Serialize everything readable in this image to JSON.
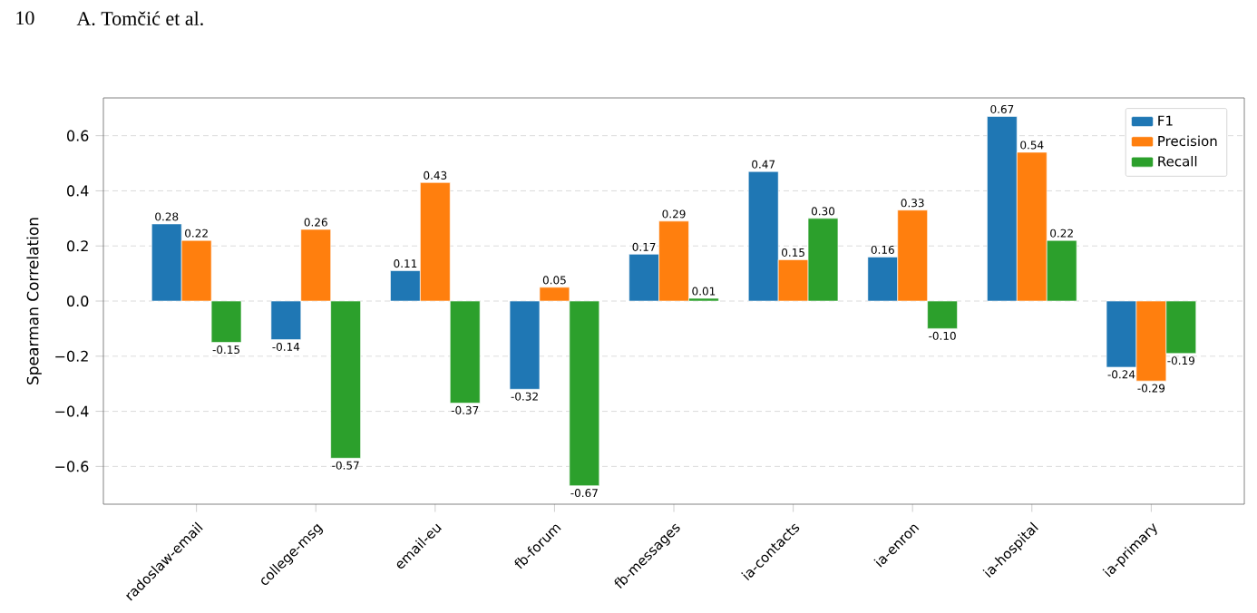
{
  "chart_data": {
    "type": "bar",
    "annotations": [
      "10",
      "A. Tomčić et al."
    ],
    "ylabel": "Spearman Correlation",
    "categories": [
      "radoslaw-email",
      "college-msg",
      "email-eu",
      "fb-forum",
      "fb-messages",
      "ia-contacts",
      "ia-enron",
      "ia-hospital",
      "ia-primary"
    ],
    "series": [
      {
        "name": "F1",
        "color": "#1f77b4",
        "values": [
          0.28,
          -0.14,
          0.11,
          -0.32,
          0.17,
          0.47,
          0.16,
          0.67,
          -0.24
        ],
        "value_labels": [
          "0.28",
          "-0.14",
          "0.11",
          "-0.32",
          "0.17",
          "0.47",
          "0.16",
          "0.67",
          "-0.24"
        ]
      },
      {
        "name": "Precision",
        "color": "#ff7f0e",
        "values": [
          0.22,
          0.26,
          0.43,
          0.05,
          0.29,
          0.15,
          0.33,
          0.54,
          -0.29
        ],
        "value_labels": [
          "0.22",
          "0.26",
          "0.43",
          "0.05",
          "0.29",
          "0.15",
          "0.33",
          "0.54",
          "-0.29"
        ]
      },
      {
        "name": "Recall",
        "color": "#2ca02c",
        "values": [
          -0.15,
          -0.57,
          -0.37,
          -0.67,
          0.01,
          0.3,
          -0.1,
          0.22,
          -0.19
        ],
        "value_labels": [
          "-0.15",
          "-0.57",
          "-0.37",
          "-0.67",
          "0.01",
          "0.30",
          "-0.10",
          "0.22",
          "-0.19"
        ]
      }
    ],
    "ylim": [
      -0.737,
      0.737
    ],
    "yticks": [
      {
        "value": -0.6,
        "label": "−0.6"
      },
      {
        "value": -0.4,
        "label": "−0.4"
      },
      {
        "value": -0.2,
        "label": "−0.2"
      },
      {
        "value": 0,
        "label": "0.0"
      },
      {
        "value": 0.2,
        "label": "0.2"
      },
      {
        "value": 0.4,
        "label": "0.4"
      },
      {
        "value": 0.6,
        "label": "0.6"
      }
    ],
    "grid": "y",
    "legend": "top right"
  }
}
